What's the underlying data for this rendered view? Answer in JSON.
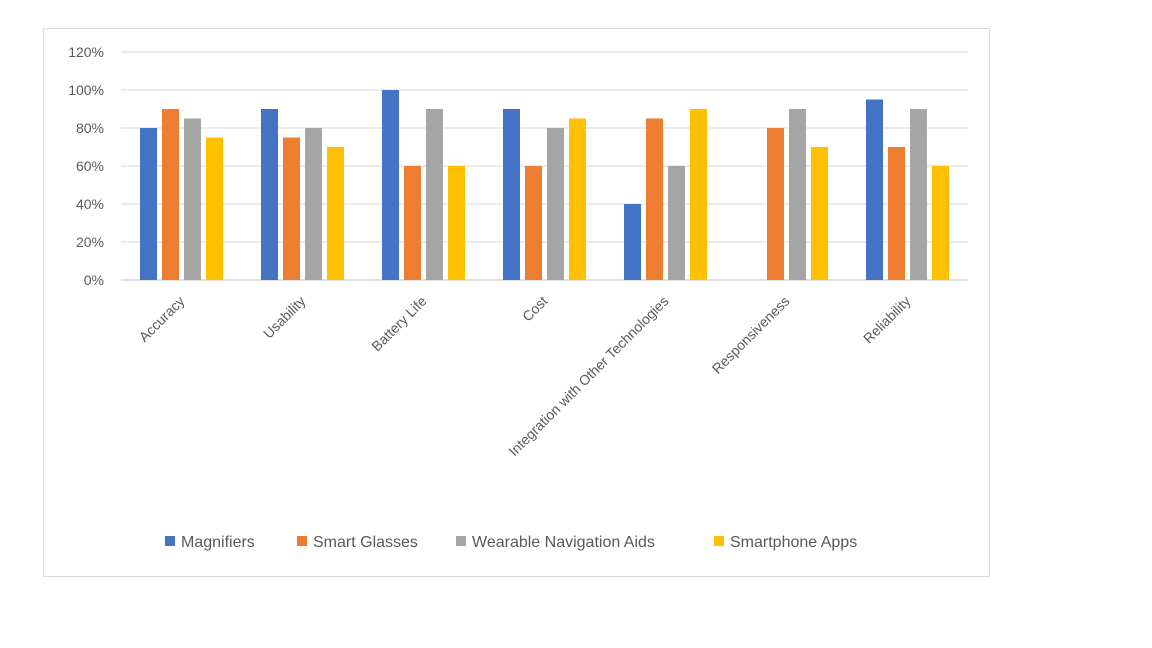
{
  "chart_data": {
    "type": "bar",
    "title": "",
    "xlabel": "",
    "ylabel": "",
    "ylim": [
      0,
      1.2
    ],
    "y_ticks": [
      0,
      0.2,
      0.4,
      0.6,
      0.8,
      1.0,
      1.2
    ],
    "y_tick_labels": [
      "0%",
      "20%",
      "40%",
      "60%",
      "80%",
      "100%",
      "120%"
    ],
    "grid": true,
    "legend_position": "bottom",
    "categories": [
      "Accuracy",
      "Usability",
      "Battery Life",
      "Cost",
      "Integration with Other Technologies",
      "Responsiveness",
      "Reliability"
    ],
    "series": [
      {
        "name": "Magnifiers",
        "color": "#4472C4",
        "values": [
          0.8,
          0.9,
          1.0,
          0.9,
          0.4,
          0.0,
          0.95
        ]
      },
      {
        "name": "Smart Glasses",
        "color": "#ED7D31",
        "values": [
          0.9,
          0.75,
          0.6,
          0.6,
          0.85,
          0.8,
          0.7
        ]
      },
      {
        "name": "Wearable Navigation Aids",
        "color": "#A5A5A5",
        "values": [
          0.85,
          0.8,
          0.9,
          0.8,
          0.6,
          0.9,
          0.9
        ]
      },
      {
        "name": "Smartphone Apps",
        "color": "#FFC000",
        "values": [
          0.75,
          0.7,
          0.6,
          0.85,
          0.9,
          0.7,
          0.6
        ]
      }
    ]
  }
}
